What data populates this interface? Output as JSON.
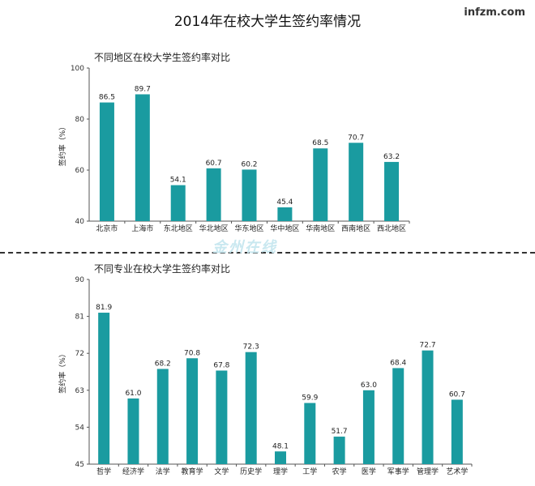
{
  "page": {
    "title": "2014年在校大学生签约率情况",
    "brand": "infzm.com",
    "watermark": "金州在线"
  },
  "colors": {
    "bar": "#1a9ba0",
    "axis": "#555555"
  },
  "chart_data": [
    {
      "type": "bar",
      "title": "不同地区在校大学生签约率对比",
      "ylabel": "签约率（%）",
      "xlabel": "",
      "ylim": [
        40,
        100
      ],
      "yticks": [
        40,
        60,
        80,
        100
      ],
      "grid": false,
      "categories": [
        "北京市",
        "上海市",
        "东北地区",
        "华北地区",
        "华东地区",
        "华中地区",
        "华南地区",
        "西南地区",
        "西北地区"
      ],
      "values": [
        86.5,
        89.7,
        54.1,
        60.7,
        60.2,
        45.4,
        68.5,
        70.7,
        63.2
      ],
      "value_labels": [
        "86.5",
        "89.7",
        "54.1",
        "60.7",
        "60.2",
        "45.4",
        "68.5",
        "70.7",
        "63.2"
      ]
    },
    {
      "type": "bar",
      "title": "不同专业在校大学生签约率对比",
      "ylabel": "签约率（%）",
      "xlabel": "",
      "ylim": [
        45,
        90
      ],
      "yticks": [
        45,
        54,
        63,
        72,
        81,
        90
      ],
      "grid": false,
      "categories": [
        "哲学",
        "经济学",
        "法学",
        "教育学",
        "文学",
        "历史学",
        "理学",
        "工学",
        "农学",
        "医学",
        "军事学",
        "管理学",
        "艺术学"
      ],
      "values": [
        81.9,
        61.0,
        68.2,
        70.8,
        67.8,
        72.3,
        48.1,
        59.9,
        51.7,
        63.0,
        68.4,
        72.7,
        60.7
      ],
      "value_labels": [
        "81.9",
        "61.0",
        "68.2",
        "70.8",
        "67.8",
        "72.3",
        "48.1",
        "59.9",
        "51.7",
        "63.0",
        "68.4",
        "72.7",
        "60.7"
      ]
    }
  ]
}
